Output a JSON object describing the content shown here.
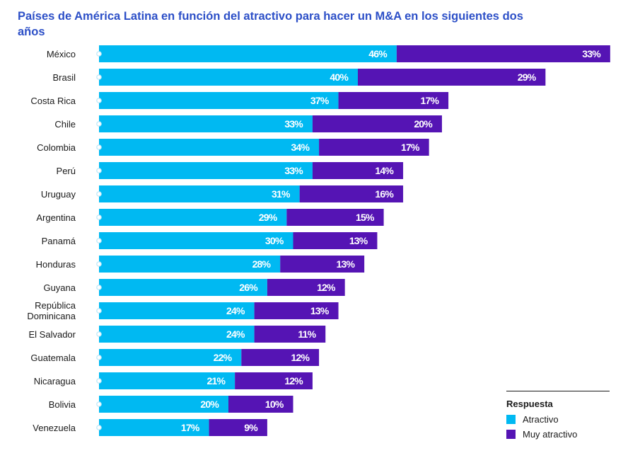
{
  "title": "Países de América Latina en función del atractivo para hacer un M&A en los siguientes dos años",
  "legend": {
    "title": "Respuesta",
    "items": [
      {
        "label": "Atractivo",
        "color": "#00b9f2"
      },
      {
        "label": "Muy atractivo",
        "color": "#5514b4"
      }
    ]
  },
  "chart_data": {
    "type": "bar",
    "orientation": "horizontal",
    "stacked": true,
    "categories": [
      "México",
      "Brasil",
      "Costa Rica",
      "Chile",
      "Colombia",
      "Perú",
      "Uruguay",
      "Argentina",
      "Panamá",
      "Honduras",
      "Guyana",
      "República Dominicana",
      "El Salvador",
      "Guatemala",
      "Nicaragua",
      "Bolivia",
      "Venezuela"
    ],
    "series": [
      {
        "name": "Atractivo",
        "color": "#00b9f2",
        "values": [
          46,
          40,
          37,
          33,
          34,
          33,
          31,
          29,
          30,
          28,
          26,
          24,
          24,
          22,
          21,
          20,
          17
        ]
      },
      {
        "name": "Muy atractivo",
        "color": "#5514b4",
        "values": [
          33,
          29,
          17,
          20,
          17,
          14,
          16,
          15,
          13,
          13,
          12,
          13,
          11,
          12,
          12,
          10,
          9
        ]
      }
    ],
    "value_suffix": "%",
    "legend_position": "bottom-right",
    "grid": false
  }
}
